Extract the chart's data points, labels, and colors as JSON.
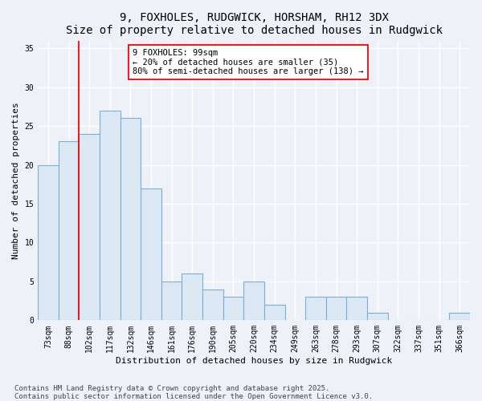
{
  "title_line1": "9, FOXHOLES, RUDGWICK, HORSHAM, RH12 3DX",
  "title_line2": "Size of property relative to detached houses in Rudgwick",
  "xlabel": "Distribution of detached houses by size in Rudgwick",
  "ylabel": "Number of detached properties",
  "bar_labels": [
    "73sqm",
    "88sqm",
    "102sqm",
    "117sqm",
    "132sqm",
    "146sqm",
    "161sqm",
    "176sqm",
    "190sqm",
    "205sqm",
    "220sqm",
    "234sqm",
    "249sqm",
    "263sqm",
    "278sqm",
    "293sqm",
    "307sqm",
    "322sqm",
    "337sqm",
    "351sqm",
    "366sqm"
  ],
  "bar_values": [
    20,
    23,
    24,
    27,
    26,
    17,
    5,
    6,
    4,
    3,
    5,
    2,
    0,
    3,
    3,
    3,
    1,
    0,
    0,
    0,
    1
  ],
  "bar_color": "#dce9f5",
  "bar_edgecolor": "#7baed4",
  "vline_x": 1.5,
  "vline_color": "red",
  "annotation_text": "9 FOXHOLES: 99sqm\n← 20% of detached houses are smaller (35)\n80% of semi-detached houses are larger (138) →",
  "ylim": [
    0,
    36
  ],
  "yticks": [
    0,
    5,
    10,
    15,
    20,
    25,
    30,
    35
  ],
  "footer_line1": "Contains HM Land Registry data © Crown copyright and database right 2025.",
  "footer_line2": "Contains public sector information licensed under the Open Government Licence v3.0.",
  "bg_color": "#eef2f8",
  "plot_bg_color": "#eef2f8",
  "grid_color": "#ffffff",
  "title_fontsize": 10,
  "axis_label_fontsize": 8,
  "tick_fontsize": 7,
  "annotation_fontsize": 7.5,
  "footer_fontsize": 6.5
}
